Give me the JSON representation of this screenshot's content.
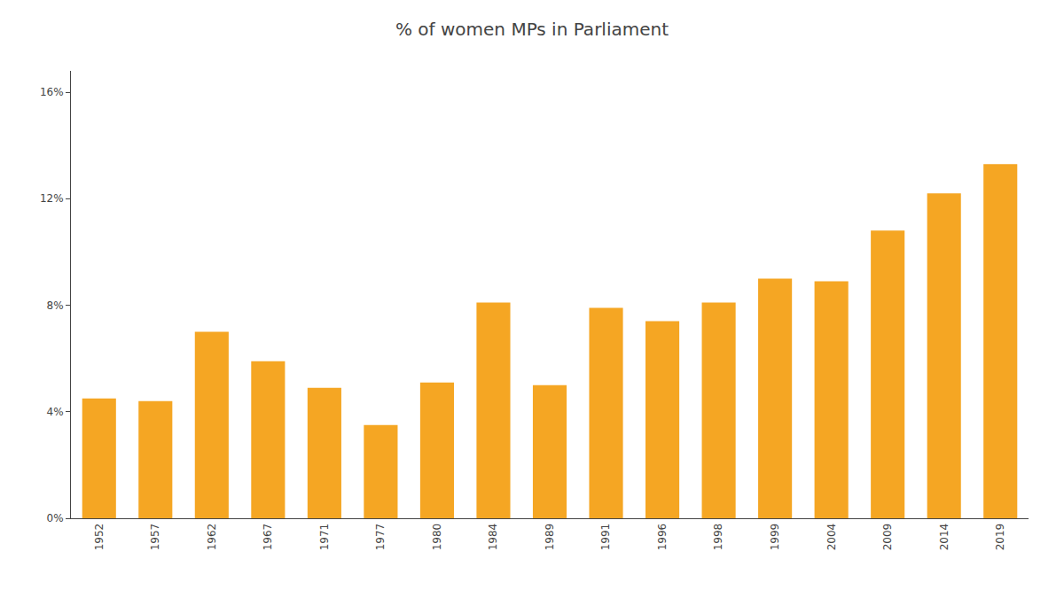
{
  "chart_data": {
    "type": "bar",
    "title": "% of women MPs in Parliament",
    "categories": [
      "1952",
      "1957",
      "1962",
      "1967",
      "1971",
      "1977",
      "1980",
      "1984",
      "1989",
      "1991",
      "1996",
      "1998",
      "1999",
      "2004",
      "2009",
      "2014",
      "2019"
    ],
    "values": [
      4.5,
      4.4,
      7.0,
      5.9,
      4.9,
      3.5,
      5.1,
      8.1,
      5.0,
      7.9,
      7.4,
      8.1,
      9.0,
      8.9,
      10.8,
      12.2,
      13.3
    ],
    "color": "#F5A623",
    "ylim": [
      0,
      16.8
    ],
    "yticks": [
      {
        "value": 0,
        "label": "0%"
      },
      {
        "value": 4,
        "label": "4%"
      },
      {
        "value": 8,
        "label": "8%"
      },
      {
        "value": 12,
        "label": "12%"
      },
      {
        "value": 16,
        "label": "16%"
      }
    ],
    "grid": false
  }
}
